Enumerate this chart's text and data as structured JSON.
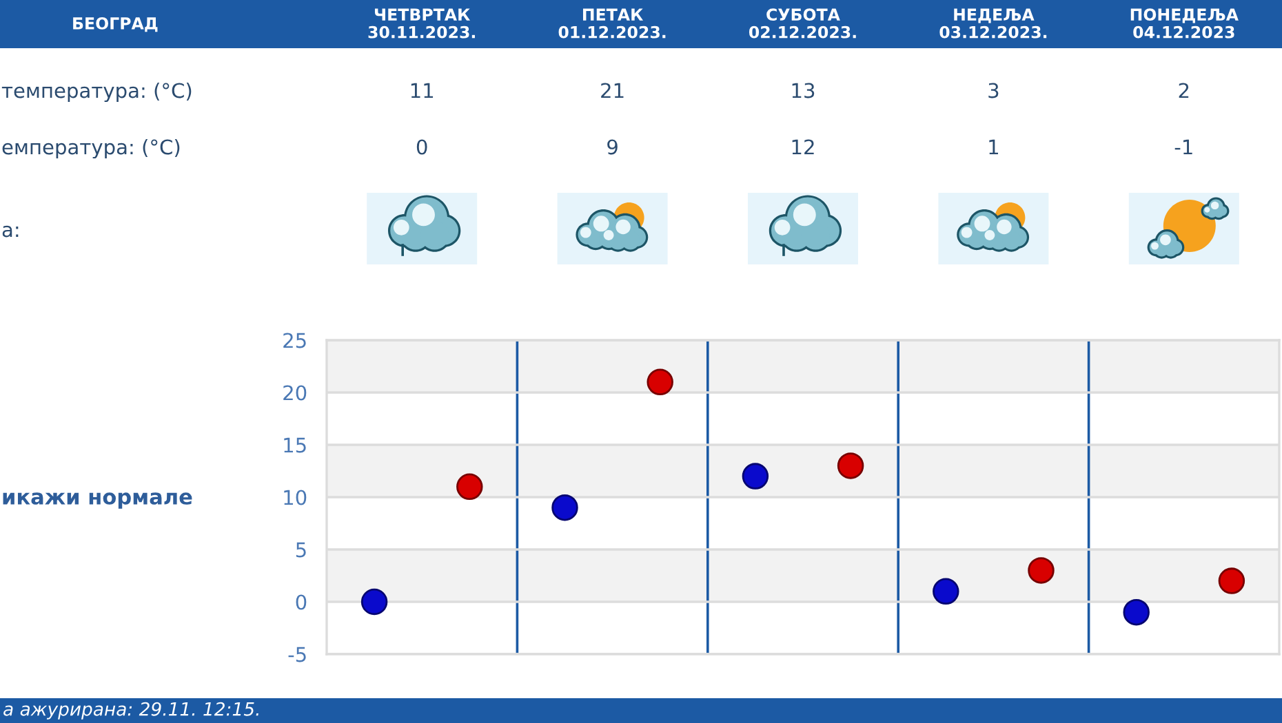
{
  "chart_data": {
    "type": "scatter",
    "title": "БЕОГРАД",
    "categories": [
      null,
      null,
      null,
      null,
      null
    ],
    "series": [
      {
        "color": "#d80000",
        "values": [
          11,
          21,
          13,
          3,
          2
        ]
      },
      {
        "color": "#0a0acc",
        "values": [
          0,
          9,
          12,
          1,
          -1
        ]
      }
    ],
    "ylim": [
      -5,
      25
    ],
    "yticks": [
      -5,
      0,
      5,
      10,
      15,
      20,
      25
    ],
    "bands": [
      {
        "axis": "y",
        "from": 0,
        "to": 5,
        "color": "#f2f2f2"
      },
      {
        "axis": "y",
        "from": 10,
        "to": 15,
        "color": "#f2f2f2"
      },
      {
        "axis": "y",
        "from": 20,
        "to": 25,
        "color": "#f2f2f2"
      }
    ],
    "grid": true,
    "marker": "circle",
    "data_labels": true,
    "tick_labels": "y",
    "annotations": [
      "ЧЕТВРТАК\n30.11.2023.",
      "ПЕТАК\n01.12.2023.",
      "СУБОТА\n02.12.2023.",
      "НЕДЕЉА\n03.12.2023.",
      "ПОНЕДЕЉА\n04.12.2023",
      "температура: (°C)",
      "емпература: (°C)",
      "а:",
      "икажи нормале",
      "а ажурирана: 29.11. 12:15."
    ]
  }
}
